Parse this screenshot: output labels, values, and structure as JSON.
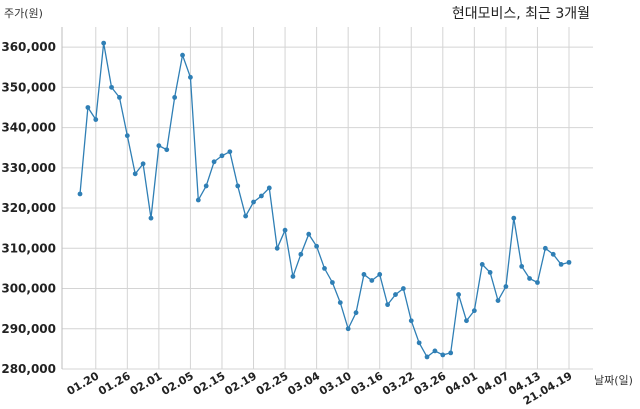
{
  "chart_data": {
    "type": "line",
    "title": "현대모비스, 최근 3개월",
    "ylabel": "주가(원)",
    "xlabel": "날짜(일)",
    "ylim": [
      280000,
      365000
    ],
    "yticks": [
      280000,
      290000,
      300000,
      310000,
      320000,
      330000,
      340000,
      350000,
      360000
    ],
    "ytick_labels": [
      "280,000",
      "290,000",
      "300,000",
      "310,000",
      "320,000",
      "330,000",
      "340,000",
      "350,000",
      "360,000"
    ],
    "grid": true,
    "color": "#2f7fb5",
    "xtick_labels": [
      "01.20",
      "01.26",
      "02.01",
      "02.05",
      "02.15",
      "02.19",
      "02.25",
      "03.04",
      "03.10",
      "03.16",
      "03.22",
      "03.26",
      "04.01",
      "04.07",
      "04.13",
      "21.04.19"
    ],
    "xtick_index": [
      2,
      6,
      10,
      14,
      18,
      22,
      26,
      30,
      34,
      38,
      42,
      46,
      50,
      54,
      58,
      62
    ],
    "values": [
      323500,
      345000,
      342000,
      361000,
      350000,
      347500,
      338000,
      328500,
      331000,
      317500,
      335500,
      334500,
      347500,
      358000,
      352500,
      322000,
      325500,
      331500,
      333000,
      334000,
      325500,
      318000,
      321500,
      323000,
      325000,
      310000,
      314500,
      303000,
      308500,
      313500,
      310500,
      305000,
      301500,
      296500,
      290000,
      294000,
      303500,
      302000,
      303500,
      296000,
      298500,
      300000,
      292000,
      286500,
      283000,
      284500,
      283500,
      284000,
      298500,
      292000,
      294500,
      306000,
      304000,
      297000,
      300500,
      317500,
      305500,
      302500,
      301500,
      310000,
      308500,
      306000,
      306500
    ]
  }
}
